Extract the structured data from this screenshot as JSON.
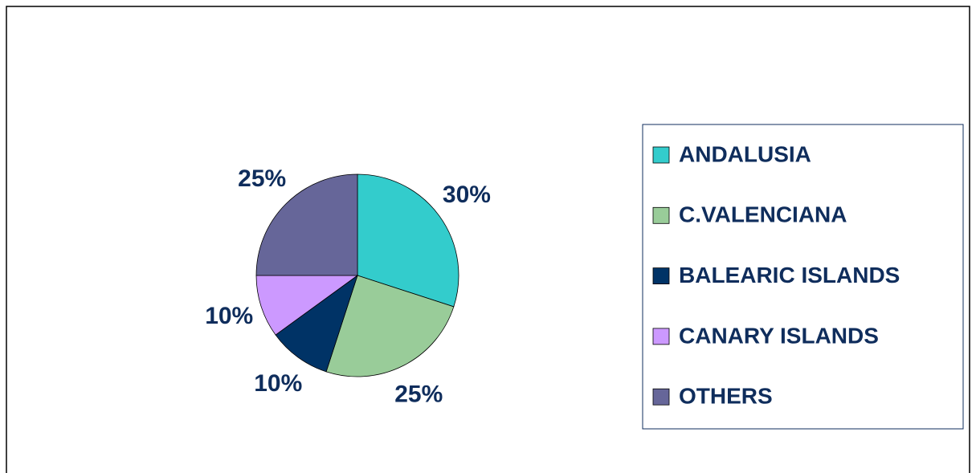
{
  "chart_data": {
    "type": "pie",
    "categories": [
      "ANDALUSIA",
      "C.VALENCIANA",
      "BALEARIC ISLANDS",
      "CANARY ISLANDS",
      "OTHERS"
    ],
    "values": [
      30,
      25,
      10,
      10,
      25
    ],
    "value_labels": [
      "30%",
      "25%",
      "10%",
      "10%",
      "25%"
    ],
    "colors": [
      "#33cccc",
      "#99cc99",
      "#003366",
      "#cc99ff",
      "#666699"
    ],
    "legend": "right"
  }
}
